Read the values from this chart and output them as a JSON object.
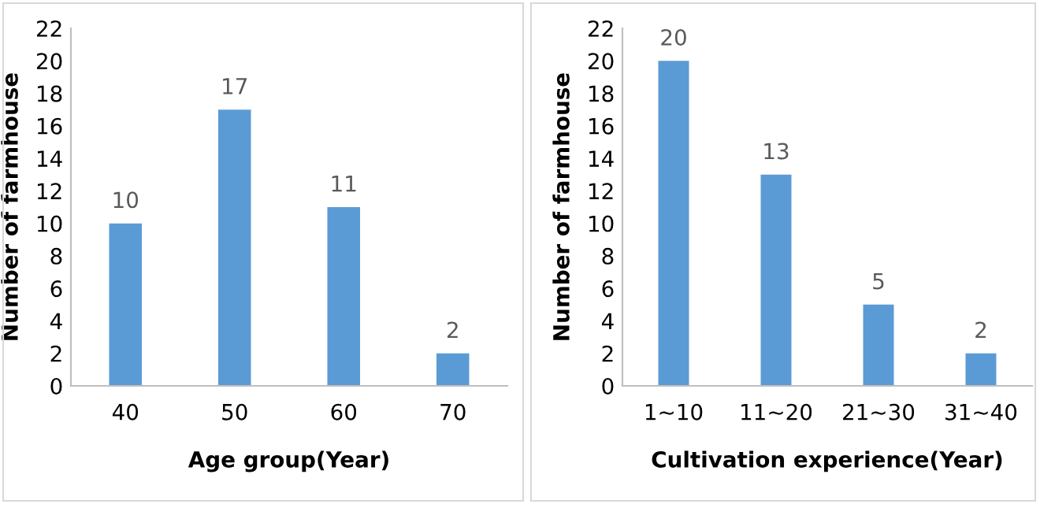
{
  "chart_data": [
    {
      "type": "bar",
      "categories": [
        "40",
        "50",
        "60",
        "70"
      ],
      "values": [
        10,
        17,
        11,
        2
      ],
      "color": "#5b9bd5",
      "xlabel": "Age group(Year)",
      "ylabel": "Number of farmhouse",
      "ylim": [
        0,
        22
      ],
      "yticks": [
        0,
        2,
        4,
        6,
        8,
        10,
        12,
        14,
        16,
        18,
        20,
        22
      ],
      "data_labels": true,
      "grid": false
    },
    {
      "type": "bar",
      "categories": [
        "1~10",
        "11~20",
        "21~30",
        "31~40"
      ],
      "values": [
        20,
        13,
        5,
        2
      ],
      "color": "#5b9bd5",
      "xlabel": "Cultivation experience(Year)",
      "ylabel": "Number of farmhouse",
      "ylim": [
        0,
        22
      ],
      "yticks": [
        0,
        2,
        4,
        6,
        8,
        10,
        12,
        14,
        16,
        18,
        20,
        22
      ],
      "data_labels": true,
      "grid": false
    }
  ]
}
